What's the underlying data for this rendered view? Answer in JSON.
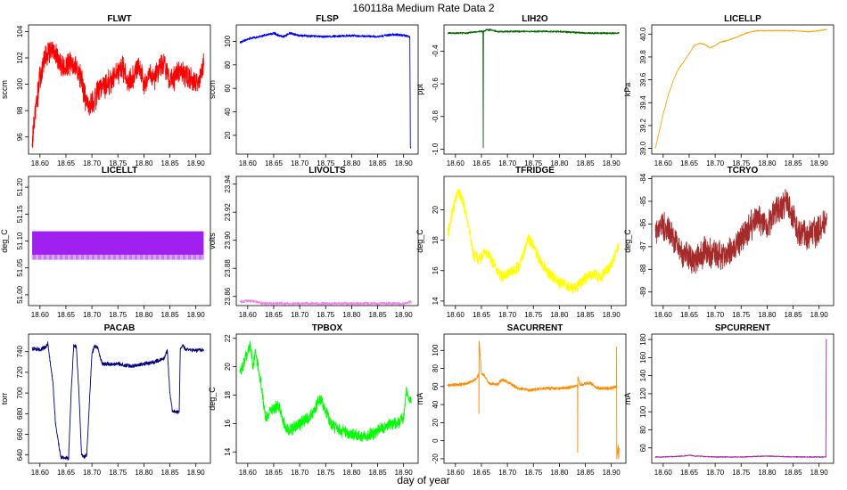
{
  "title": "160118a   Medium Rate Data 2",
  "xlabel": "day of year",
  "colors": {
    "frame": "#000000",
    "background": "#ffffff"
  },
  "chart_data": [
    {
      "type": "line",
      "title": "FLWT",
      "ylabel": "sccm",
      "color": "#ff0000",
      "xlim": [
        18.578,
        18.928
      ],
      "xticks": [
        "18.60",
        "18.65",
        "18.70",
        "18.75",
        "18.80",
        "18.85",
        "18.90"
      ],
      "ylim": [
        94.7,
        104.5
      ],
      "yticks": [
        "96",
        "98",
        "100",
        "102",
        "104"
      ],
      "grid": false,
      "noise": 1.1,
      "series": [
        {
          "x": [
            18.585,
            18.59,
            18.6,
            18.61,
            18.62,
            18.63,
            18.64,
            18.65,
            18.66,
            18.67,
            18.68,
            18.69,
            18.7,
            18.71,
            18.72,
            18.73,
            18.74,
            18.75,
            18.76,
            18.77,
            18.78,
            18.79,
            18.8,
            18.81,
            18.82,
            18.83,
            18.84,
            18.85,
            18.86,
            18.87,
            18.88,
            18.89,
            18.9,
            18.91,
            18.915
          ],
          "y": [
            95.5,
            97.5,
            100.5,
            102.0,
            102.6,
            102.2,
            101.4,
            101.2,
            101.6,
            101.3,
            100.3,
            98.6,
            98.5,
            99.3,
            99.8,
            100.0,
            100.3,
            100.8,
            101.2,
            100.3,
            100.5,
            101.4,
            100.0,
            101.0,
            100.5,
            101.3,
            101.7,
            100.1,
            100.4,
            101.0,
            100.5,
            100.6,
            100.2,
            100.6,
            101.4
          ]
        }
      ]
    },
    {
      "type": "line",
      "title": "FLSP",
      "ylabel": "sccm",
      "color": "#0000ff",
      "xlim": [
        18.578,
        18.928
      ],
      "xticks": [
        "18.60",
        "18.65",
        "18.70",
        "18.75",
        "18.80",
        "18.85",
        "18.90"
      ],
      "ylim": [
        4,
        114
      ],
      "yticks": [
        "20",
        "40",
        "60",
        "80",
        "100"
      ],
      "grid": false,
      "noise": 1.2,
      "series": [
        {
          "x": [
            18.585,
            18.6,
            18.62,
            18.64,
            18.65,
            18.66,
            18.67,
            18.68,
            18.7,
            18.75,
            18.8,
            18.85,
            18.88,
            18.9,
            18.912,
            18.913,
            18.914
          ],
          "y": [
            99,
            102,
            104,
            106,
            107,
            105,
            104,
            107,
            105,
            104,
            105,
            104,
            106,
            105,
            104,
            10,
            10
          ]
        }
      ]
    },
    {
      "type": "line",
      "title": "LIH2O",
      "ylabel": "ppt",
      "color": "#006400",
      "xlim": [
        18.578,
        18.928
      ],
      "xticks": [
        "18.60",
        "18.65",
        "18.70",
        "18.75",
        "18.80",
        "18.85",
        "18.90"
      ],
      "ylim": [
        -1.03,
        -0.24
      ],
      "yticks": [
        "-1.0",
        "-0.8",
        "-0.6",
        "-0.4"
      ],
      "grid": false,
      "noise": 0.006,
      "series": [
        {
          "x": [
            18.585,
            18.62,
            18.645,
            18.653,
            18.6535,
            18.654,
            18.66,
            18.67,
            18.68,
            18.7,
            18.75,
            18.8,
            18.85,
            18.9,
            18.915
          ],
          "y": [
            -0.29,
            -0.29,
            -0.28,
            -0.28,
            -0.99,
            -0.28,
            -0.27,
            -0.27,
            -0.28,
            -0.28,
            -0.28,
            -0.28,
            -0.29,
            -0.29,
            -0.29
          ]
        }
      ]
    },
    {
      "type": "line",
      "title": "LICELLP",
      "ylabel": "kPa",
      "color": "#ffa500",
      "xlim": [
        18.578,
        18.928
      ],
      "xticks": [
        "18.60",
        "18.65",
        "18.70",
        "18.75",
        "18.80",
        "18.85",
        "18.90"
      ],
      "ylim": [
        38.95,
        40.08
      ],
      "yticks": [
        "39.0",
        "39.2",
        "39.4",
        "39.6",
        "39.8",
        "40.0"
      ],
      "grid": false,
      "noise": 0.004,
      "series": [
        {
          "x": [
            18.585,
            18.6,
            18.61,
            18.62,
            18.63,
            18.64,
            18.65,
            18.66,
            18.67,
            18.68,
            18.69,
            18.7,
            18.71,
            18.72,
            18.74,
            18.76,
            18.78,
            18.8,
            18.82,
            18.85,
            18.88,
            18.9,
            18.915
          ],
          "y": [
            39.0,
            39.3,
            39.47,
            39.6,
            39.7,
            39.76,
            39.83,
            39.9,
            39.92,
            39.91,
            39.88,
            39.9,
            39.93,
            39.94,
            39.97,
            40.01,
            40.03,
            40.03,
            40.03,
            40.03,
            40.02,
            40.03,
            40.04
          ]
        }
      ]
    },
    {
      "type": "line",
      "title": "LICELLT",
      "ylabel": "deg_C",
      "color": "#a020f0",
      "xlim": [
        18.578,
        18.928
      ],
      "xticks": [
        "18.60",
        "18.65",
        "18.70",
        "18.75",
        "18.80",
        "18.85",
        "18.90"
      ],
      "ylim": [
        50.98,
        51.22
      ],
      "yticks": [
        "51.00",
        "51.05",
        "51.10",
        "51.15",
        "51.20"
      ],
      "grid": false,
      "band": [
        51.065,
        51.118
      ],
      "series": [
        {
          "x": [
            18.585,
            18.915
          ],
          "y": [
            51.065,
            51.118
          ]
        }
      ]
    },
    {
      "type": "line",
      "title": "LIVOLTS",
      "ylabel": "volts",
      "color": "#ee82ee",
      "xlim": [
        18.578,
        18.928
      ],
      "xticks": [
        "18.60",
        "18.65",
        "18.70",
        "18.75",
        "18.80",
        "18.85",
        "18.90"
      ],
      "ylim": [
        23.8535,
        23.9455
      ],
      "yticks": [
        "23.86",
        "23.88",
        "23.90",
        "23.92",
        "23.94"
      ],
      "grid": false,
      "noise": 0.0012,
      "series": [
        {
          "x": [
            18.585,
            18.6,
            18.62,
            18.63,
            18.65,
            18.7,
            18.75,
            18.8,
            18.85,
            18.9,
            18.91,
            18.915
          ],
          "y": [
            23.856,
            23.857,
            23.856,
            23.855,
            23.855,
            23.855,
            23.855,
            23.855,
            23.855,
            23.855,
            23.856,
            23.856
          ]
        }
      ]
    },
    {
      "type": "line",
      "title": "TFRIDGE",
      "ylabel": "deg_C",
      "color": "#ffff00",
      "xlim": [
        18.578,
        18.928
      ],
      "xticks": [
        "18.60",
        "18.65",
        "18.70",
        "18.75",
        "18.80",
        "18.85",
        "18.90"
      ],
      "ylim": [
        13.7,
        22.2
      ],
      "yticks": [
        "14",
        "16",
        "18",
        "20"
      ],
      "grid": false,
      "noise": 0.45,
      "series": [
        {
          "x": [
            18.585,
            18.595,
            18.605,
            18.615,
            18.625,
            18.635,
            18.645,
            18.66,
            18.68,
            18.69,
            18.7,
            18.72,
            18.73,
            18.74,
            18.75,
            18.76,
            18.78,
            18.8,
            18.82,
            18.83,
            18.84,
            18.86,
            18.88,
            18.9,
            18.915
          ],
          "y": [
            18.3,
            20.0,
            21.3,
            20.5,
            19.0,
            17.0,
            16.8,
            17.2,
            16.0,
            15.6,
            15.8,
            16.2,
            17.0,
            18.2,
            17.6,
            16.8,
            15.8,
            15.2,
            15.0,
            14.8,
            15.2,
            15.8,
            15.6,
            16.4,
            17.8
          ]
        }
      ]
    },
    {
      "type": "line",
      "title": "TCRYO",
      "ylabel": "deg_C",
      "color": "#a52a2a",
      "xlim": [
        18.578,
        18.928
      ],
      "xticks": [
        "18.60",
        "18.65",
        "18.70",
        "18.75",
        "18.80",
        "18.85",
        "18.90"
      ],
      "ylim": [
        -89.6,
        -83.9
      ],
      "yticks": [
        "-89",
        "-88",
        "-87",
        "-86",
        "-85",
        "-84"
      ],
      "grid": false,
      "noise": 0.75,
      "series": [
        {
          "x": [
            18.585,
            18.6,
            18.62,
            18.64,
            18.66,
            18.68,
            18.7,
            18.72,
            18.74,
            18.76,
            18.78,
            18.8,
            18.82,
            18.84,
            18.86,
            18.88,
            18.9,
            18.915
          ],
          "y": [
            -86.3,
            -86.0,
            -86.6,
            -87.4,
            -87.6,
            -87.2,
            -87.3,
            -87.4,
            -87.0,
            -86.3,
            -85.8,
            -86.0,
            -85.4,
            -85.1,
            -86.4,
            -86.5,
            -86.3,
            -85.8
          ]
        }
      ]
    },
    {
      "type": "line",
      "title": "PACAB",
      "ylabel": "torr",
      "color": "#000080",
      "xlim": [
        18.578,
        18.928
      ],
      "xticks": [
        "18.60",
        "18.65",
        "18.70",
        "18.75",
        "18.80",
        "18.85",
        "18.90"
      ],
      "ylim": [
        632,
        757
      ],
      "yticks": [
        "640",
        "660",
        "680",
        "700",
        "720",
        "740"
      ],
      "grid": false,
      "noise": 2.2,
      "series": [
        {
          "x": [
            18.585,
            18.6,
            18.61,
            18.615,
            18.625,
            18.63,
            18.64,
            18.655,
            18.66,
            18.665,
            18.67,
            18.675,
            18.68,
            18.685,
            18.69,
            18.7,
            18.705,
            18.71,
            18.72,
            18.75,
            18.78,
            18.8,
            18.82,
            18.84,
            18.845,
            18.85,
            18.855,
            18.862,
            18.868,
            18.87,
            18.875,
            18.88,
            18.9,
            18.915
          ],
          "y": [
            743,
            742,
            744,
            748,
            710,
            670,
            638,
            637,
            700,
            746,
            745,
            700,
            640,
            638,
            640,
            738,
            745,
            745,
            728,
            728,
            726,
            728,
            730,
            734,
            742,
            700,
            682,
            682,
            682,
            742,
            746,
            742,
            741,
            742
          ]
        }
      ]
    },
    {
      "type": "line",
      "title": "TPBOX",
      "ylabel": "deg_C",
      "color": "#00ff00",
      "xlim": [
        18.578,
        18.928
      ],
      "xticks": [
        "18.60",
        "18.65",
        "18.70",
        "18.75",
        "18.80",
        "18.85",
        "18.90"
      ],
      "ylim": [
        13.2,
        22.3
      ],
      "yticks": [
        "14",
        "16",
        "18",
        "20",
        "22"
      ],
      "grid": false,
      "noise": 0.5,
      "series": [
        {
          "x": [
            18.585,
            18.595,
            18.605,
            18.61,
            18.615,
            18.625,
            18.635,
            18.645,
            18.66,
            18.67,
            18.68,
            18.7,
            18.72,
            18.74,
            18.75,
            18.76,
            18.78,
            18.8,
            18.82,
            18.84,
            18.86,
            18.88,
            18.9,
            18.905,
            18.915
          ],
          "y": [
            19.6,
            20.5,
            21.6,
            20.0,
            21.0,
            19.0,
            16.3,
            17.0,
            17.2,
            16.0,
            15.5,
            16.0,
            16.5,
            17.8,
            16.8,
            16.0,
            15.5,
            15.2,
            15.0,
            15.3,
            15.7,
            16.0,
            16.3,
            18.3,
            17.5
          ]
        }
      ]
    },
    {
      "type": "line",
      "title": "SACURRENT",
      "ylabel": "mA",
      "color": "#ff8c00",
      "xlim": [
        18.578,
        18.928
      ],
      "xticks": [
        "18.60",
        "18.65",
        "18.70",
        "18.75",
        "18.80",
        "18.85",
        "18.90"
      ],
      "ylim": [
        -25,
        118
      ],
      "yticks": [
        "-20",
        "0",
        "20",
        "40",
        "60",
        "80",
        "100"
      ],
      "grid": false,
      "noise": 2.0,
      "series": [
        {
          "x": [
            18.585,
            18.6,
            18.62,
            18.64,
            18.645,
            18.6452,
            18.6455,
            18.65,
            18.655,
            18.665,
            18.68,
            18.69,
            18.7,
            18.72,
            18.74,
            18.76,
            18.78,
            18.8,
            18.82,
            18.835,
            18.8352,
            18.8355,
            18.84,
            18.86,
            18.87,
            18.88,
            18.9,
            18.91,
            18.9102,
            18.9105,
            18.913,
            18.914,
            18.915
          ],
          "y": [
            61,
            62,
            63,
            68,
            74,
            30,
            110,
            75,
            73,
            63,
            62,
            68,
            65,
            58,
            56,
            57,
            58,
            58,
            59,
            61,
            -13,
            70,
            62,
            64,
            59,
            58,
            58,
            60,
            104,
            -20,
            -5,
            -20,
            -8
          ]
        }
      ]
    },
    {
      "type": "line",
      "title": "SPCURRENT",
      "ylabel": "mA",
      "color": "#a020a0",
      "xlim": [
        18.578,
        18.928
      ],
      "xticks": [
        "18.60",
        "18.65",
        "18.70",
        "18.75",
        "18.80",
        "18.85",
        "18.90"
      ],
      "ylim": [
        43,
        186
      ],
      "yticks": [
        "60",
        "80",
        "100",
        "120",
        "140",
        "160",
        "180"
      ],
      "grid": false,
      "noise": 0.6,
      "series": [
        {
          "x": [
            18.585,
            18.6,
            18.64,
            18.65,
            18.66,
            18.7,
            18.75,
            18.8,
            18.85,
            18.9,
            18.912,
            18.913,
            18.914,
            18.915
          ],
          "y": [
            50,
            50,
            51,
            52,
            51,
            50,
            50,
            51,
            50,
            50,
            50,
            50,
            180,
            180
          ]
        }
      ]
    }
  ]
}
